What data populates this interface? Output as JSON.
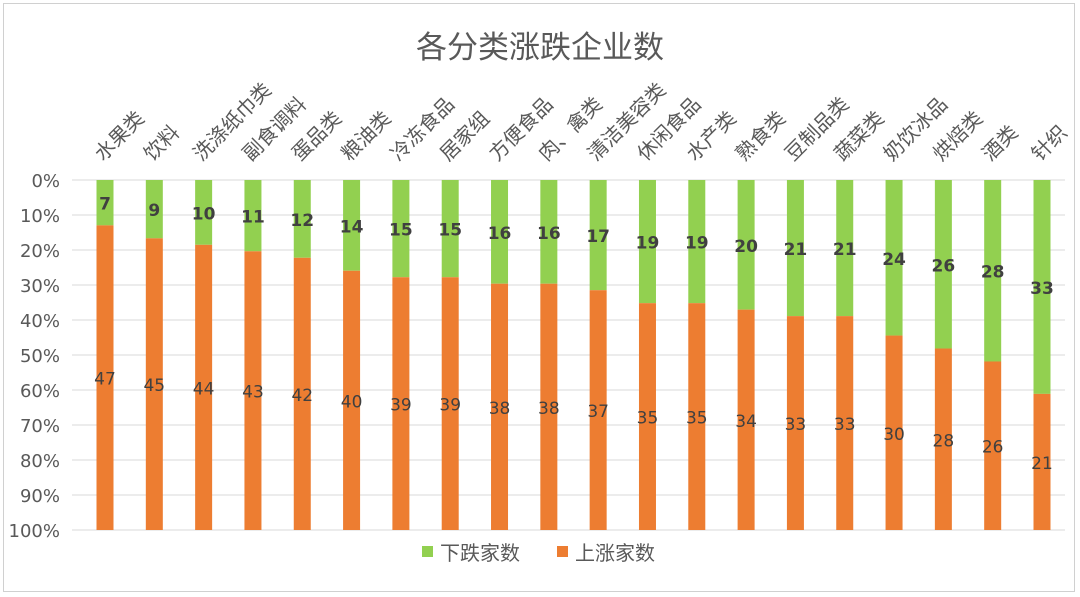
{
  "chart_data": {
    "type": "bar",
    "stacked": "percent",
    "title": "各分类涨跌企业数",
    "categories": [
      "水果类",
      "饮料",
      "洗涤纸巾类",
      "副食调料",
      "蛋品类",
      "粮油类",
      "冷冻食品",
      "居家组",
      "方便食品",
      "肉、禽类",
      "清洁美容类",
      "休闲食品",
      "水产类",
      "熟食类",
      "豆制品类",
      "蔬菜类",
      "奶饮冰品",
      "烘焙类",
      "酒类",
      "针织"
    ],
    "series": [
      {
        "name": "下跌家数",
        "color": "#92d050",
        "values": [
          7,
          9,
          10,
          11,
          12,
          14,
          15,
          15,
          16,
          16,
          17,
          19,
          19,
          20,
          21,
          21,
          24,
          26,
          28,
          33
        ]
      },
      {
        "name": "上涨家数",
        "color": "#ed7d31",
        "values": [
          47,
          45,
          44,
          43,
          42,
          40,
          39,
          39,
          38,
          38,
          37,
          35,
          35,
          34,
          33,
          33,
          30,
          28,
          26,
          21
        ]
      }
    ],
    "yticks": [
      "0%",
      "10%",
      "20%",
      "30%",
      "40%",
      "50%",
      "60%",
      "70%",
      "80%",
      "90%",
      "100%"
    ],
    "ylim": [
      0,
      100
    ],
    "y_inverted": true,
    "grid": true,
    "legend": "bottom"
  }
}
